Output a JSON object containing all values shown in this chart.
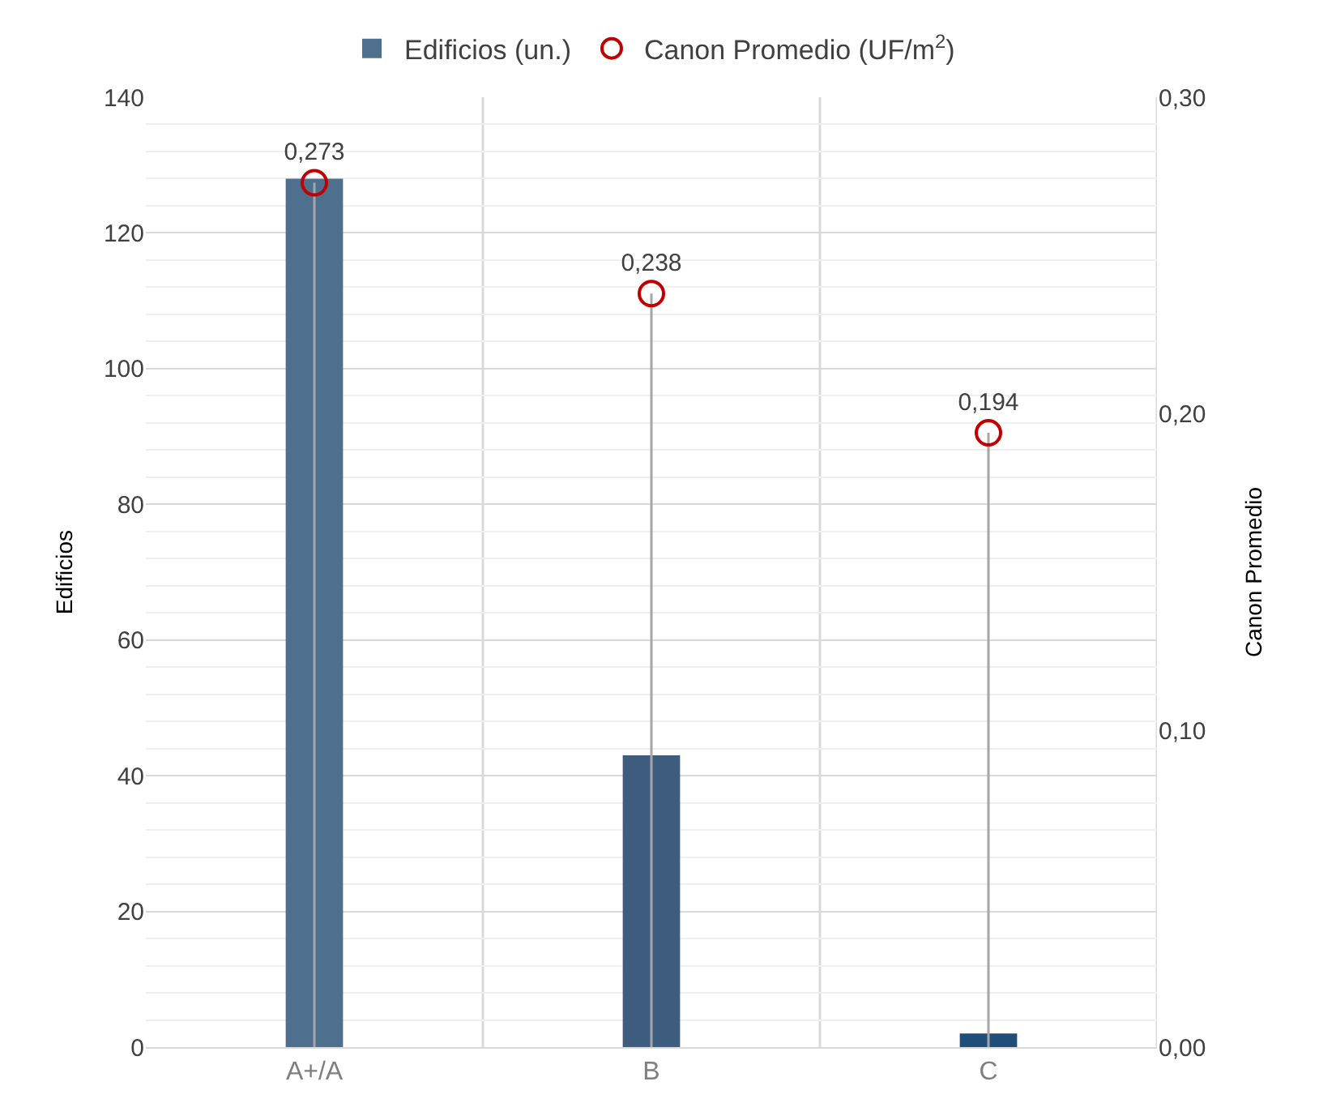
{
  "chart_data": {
    "type": "bar",
    "ylabel": "Edificios",
    "y2label": "Canon Promedio",
    "categories": [
      "A+/A",
      "B",
      "C"
    ],
    "series": [
      {
        "name": "Edificios (un.)",
        "colors": [
          "#4f6f8f",
          "#3d5c7e",
          "#1f4e79"
        ],
        "color": "#3d5c7e",
        "values": [
          128,
          43,
          2
        ]
      },
      {
        "name": "Canon Promedio (UF/m$^{2}$)",
        "type": "lollipop",
        "axis": "y2",
        "color": "#c00000",
        "values": [
          0.273,
          0.238,
          0.194
        ],
        "value_labels": [
          "0,273",
          "0,238",
          "0,194"
        ]
      }
    ],
    "ylim": [
      0,
      140
    ],
    "yticks": [
      0,
      20,
      40,
      60,
      80,
      100,
      120,
      140
    ],
    "y2lim": [
      0,
      0.3
    ],
    "y2ticks": [
      {
        "value": 0,
        "label": "0,00"
      },
      {
        "value": 0.1,
        "label": "0,10"
      },
      {
        "value": 0.2,
        "label": "0,20"
      },
      {
        "value": 0.3,
        "label": "0,30"
      }
    ],
    "grid": true,
    "legend": "top",
    "marker": "circle"
  }
}
